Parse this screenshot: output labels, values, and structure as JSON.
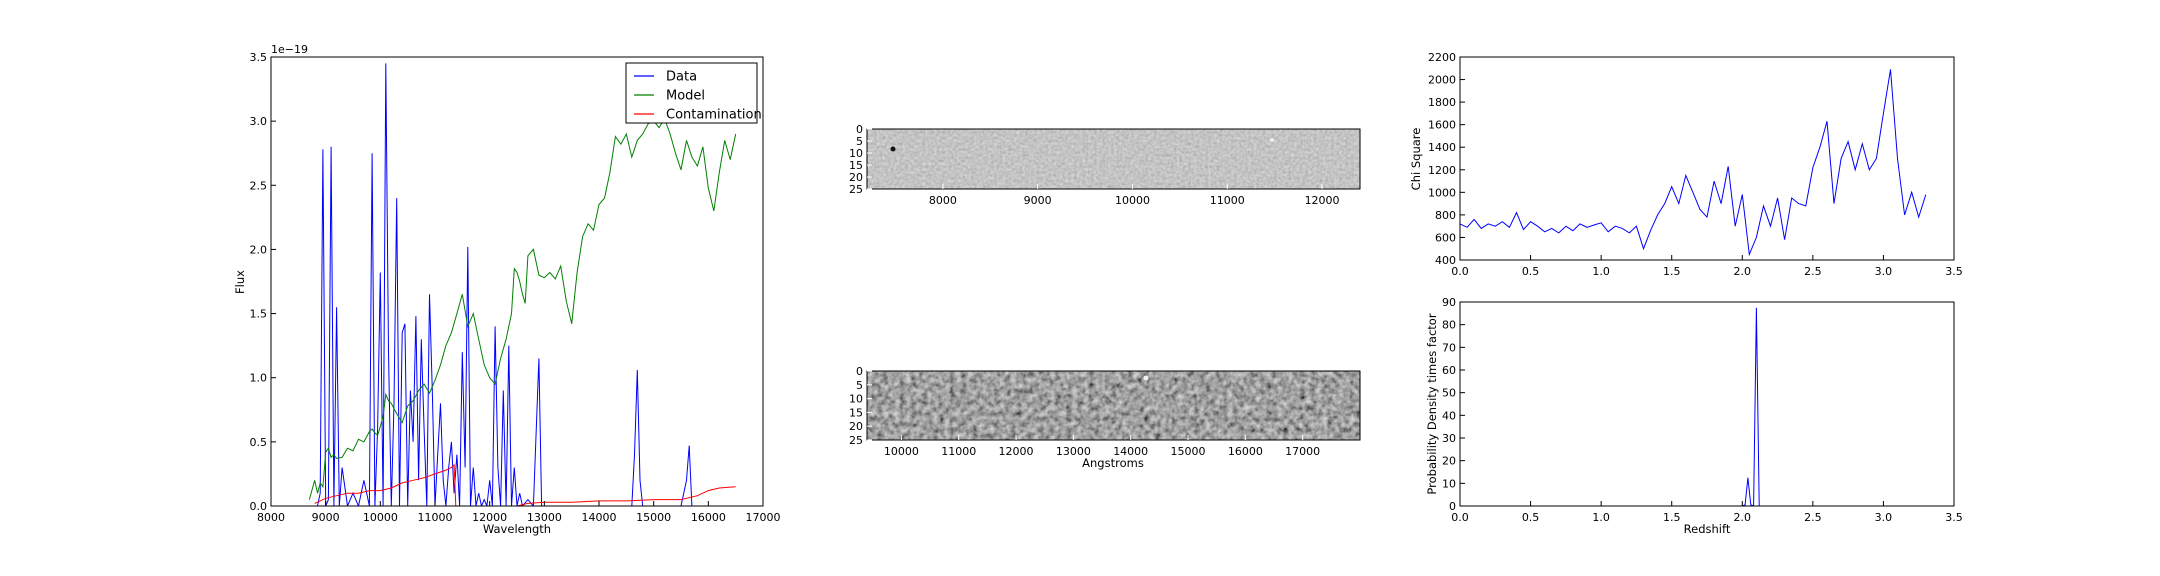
{
  "chart_data": [
    {
      "id": "spectrum",
      "type": "line",
      "xlabel": "Wavelength",
      "ylabel": "Flux",
      "offset_text": "1e−19",
      "xlim": [
        8000,
        17000
      ],
      "ylim": [
        0,
        3.5
      ],
      "xticks": [
        "8000",
        "9000",
        "10000",
        "11000",
        "12000",
        "13000",
        "14000",
        "15000",
        "16000",
        "17000"
      ],
      "yticks": [
        "0.0",
        "0.5",
        "1.0",
        "1.5",
        "2.0",
        "2.5",
        "3.0",
        "3.5"
      ],
      "legend": {
        "placement": "top-right",
        "entries": [
          "Data",
          "Model",
          "Contamination"
        ]
      },
      "series": [
        {
          "name": "Data",
          "color": "#0000ff",
          "x": [
            8850,
            8900,
            8950,
            9000,
            9050,
            9100,
            9150,
            9200,
            9250,
            9300,
            9400,
            9500,
            9600,
            9700,
            9800,
            9850,
            9900,
            9950,
            10000,
            10050,
            10100,
            10150,
            10200,
            10250,
            10300,
            10350,
            10400,
            10450,
            10500,
            10550,
            10600,
            10650,
            10700,
            10750,
            10800,
            10850,
            10900,
            10950,
            11000,
            11050,
            11100,
            11150,
            11200,
            11250,
            11300,
            11350,
            11400,
            11450,
            11500,
            11550,
            11600,
            11650,
            11700,
            11750,
            11800,
            11850,
            11900,
            11950,
            12000,
            12050,
            12100,
            12150,
            12200,
            12250,
            12300,
            12350,
            12400,
            12450,
            12500,
            12550,
            12600,
            12700,
            12800,
            12900,
            12950,
            13000,
            13050,
            13200,
            13500,
            13800,
            14000,
            14200,
            14500,
            14600,
            14650,
            14700,
            14750,
            14800,
            15000,
            15300,
            15500,
            15600,
            15650,
            15700,
            15750,
            15800,
            16000,
            16300,
            16500
          ],
          "y": [
            0,
            0.1,
            2.78,
            0,
            0.05,
            2.8,
            0,
            1.55,
            0,
            0.3,
            0,
            0.1,
            0,
            0.2,
            0,
            2.75,
            0,
            0.6,
            1.82,
            0,
            3.45,
            1.2,
            0,
            0.8,
            2.4,
            0,
            1.35,
            1.42,
            0,
            0.9,
            0.5,
            1.48,
            0.2,
            1.3,
            0.6,
            0,
            1.65,
            0.9,
            0,
            0.4,
            0.8,
            0.2,
            0,
            0.3,
            0.5,
            0.1,
            0.4,
            0,
            1.2,
            0.3,
            2.02,
            0,
            0.3,
            0,
            0.1,
            0,
            0.05,
            0,
            0.2,
            0,
            1.4,
            0.3,
            0,
            0.9,
            0,
            1.25,
            0,
            0.3,
            0,
            0.1,
            0,
            0.05,
            0,
            1.15,
            0,
            0,
            0,
            0,
            0,
            0,
            0,
            0,
            0,
            0,
            0.4,
            1.06,
            0.2,
            0,
            0,
            0,
            0,
            0.2,
            0.47,
            0,
            0,
            0,
            0,
            0,
            0
          ]
        },
        {
          "name": "Model",
          "color": "#008000",
          "x": [
            8700,
            8800,
            8850,
            8900,
            8950,
            9000,
            9050,
            9100,
            9150,
            9200,
            9300,
            9400,
            9500,
            9600,
            9700,
            9800,
            9850,
            9900,
            9950,
            10000,
            10050,
            10100,
            10150,
            10200,
            10300,
            10400,
            10500,
            10600,
            10700,
            10800,
            10900,
            11000,
            11100,
            11200,
            11300,
            11400,
            11500,
            11600,
            11700,
            11800,
            11900,
            12000,
            12100,
            12200,
            12300,
            12400,
            12450,
            12500,
            12550,
            12600,
            12650,
            12700,
            12800,
            12900,
            13000,
            13100,
            13200,
            13300,
            13400,
            13500,
            13600,
            13700,
            13800,
            13900,
            14000,
            14100,
            14200,
            14300,
            14400,
            14500,
            14600,
            14700,
            14800,
            14900,
            15000,
            15100,
            15200,
            15300,
            15400,
            15500,
            15600,
            15700,
            15800,
            15900,
            16000,
            16100,
            16200,
            16300,
            16400,
            16500
          ],
          "y": [
            0.05,
            0.2,
            0.1,
            0.18,
            0.15,
            0.42,
            0.45,
            0.38,
            0.4,
            0.37,
            0.38,
            0.45,
            0.43,
            0.52,
            0.5,
            0.58,
            0.6,
            0.57,
            0.55,
            0.62,
            0.7,
            0.87,
            0.82,
            0.8,
            0.72,
            0.65,
            0.78,
            0.82,
            0.9,
            0.95,
            0.88,
            0.98,
            1.1,
            1.25,
            1.35,
            1.5,
            1.65,
            1.4,
            1.5,
            1.3,
            1.1,
            1.0,
            0.95,
            1.15,
            1.3,
            1.5,
            1.85,
            1.82,
            1.75,
            1.65,
            1.58,
            1.95,
            2.0,
            1.8,
            1.78,
            1.82,
            1.77,
            1.87,
            1.6,
            1.42,
            1.82,
            2.1,
            2.2,
            2.15,
            2.35,
            2.4,
            2.6,
            2.88,
            2.82,
            2.9,
            2.72,
            2.85,
            2.9,
            2.98,
            3.0,
            2.95,
            3.02,
            2.9,
            2.75,
            2.62,
            2.85,
            2.72,
            2.65,
            2.8,
            2.48,
            2.3,
            2.6,
            2.85,
            2.7,
            2.9
          ]
        },
        {
          "name": "Contamination",
          "color": "#ff0000",
          "x": [
            8800,
            8900,
            9000,
            9200,
            9400,
            9600,
            9800,
            10000,
            10200,
            10400,
            10600,
            10800,
            11000,
            11200,
            11300,
            11350,
            11380,
            11400,
            11420,
            11500,
            12000,
            12500,
            12700,
            13000,
            13500,
            14000,
            14500,
            15000,
            15500,
            15800,
            16000,
            16200,
            16500
          ],
          "y": [
            0.02,
            0.04,
            0.06,
            0.08,
            0.1,
            0.1,
            0.12,
            0.12,
            0.14,
            0.18,
            0.2,
            0.22,
            0.25,
            0.28,
            0.3,
            0.32,
            0.0,
            0.0,
            0.0,
            0.0,
            0.0,
            0.0,
            0.02,
            0.03,
            0.03,
            0.04,
            0.04,
            0.05,
            0.05,
            0.08,
            0.12,
            0.14,
            0.15
          ]
        }
      ]
    },
    {
      "id": "spectrum-2d-top",
      "type": "heatmap",
      "xlim": [
        7200,
        12400
      ],
      "ylim": [
        0,
        25
      ],
      "xticks": [
        "8000",
        "9000",
        "10000",
        "11000",
        "12000"
      ],
      "yticks": [
        "0",
        "5",
        "10",
        "15",
        "20",
        "25"
      ],
      "colormap": "gray"
    },
    {
      "id": "spectrum-2d-bottom",
      "type": "heatmap",
      "xlabel": "Angstroms",
      "xlim": [
        9400,
        18000
      ],
      "ylim": [
        0,
        25
      ],
      "xticks": [
        "10000",
        "11000",
        "12000",
        "13000",
        "14000",
        "15000",
        "16000",
        "17000"
      ],
      "yticks": [
        "0",
        "5",
        "10",
        "15",
        "20",
        "25"
      ],
      "colormap": "gray"
    },
    {
      "id": "chisquare",
      "type": "line",
      "ylabel": "Chi Square",
      "xlim": [
        0,
        3.5
      ],
      "ylim": [
        400,
        2200
      ],
      "xticks": [
        "0.0",
        "0.5",
        "1.0",
        "1.5",
        "2.0",
        "2.5",
        "3.0",
        "3.5"
      ],
      "yticks": [
        "400",
        "600",
        "800",
        "1000",
        "1200",
        "1400",
        "1600",
        "1800",
        "2000",
        "2200"
      ],
      "series": [
        {
          "color": "#0000ff",
          "x": [
            0.0,
            0.05,
            0.1,
            0.15,
            0.2,
            0.25,
            0.3,
            0.35,
            0.4,
            0.45,
            0.5,
            0.55,
            0.6,
            0.65,
            0.7,
            0.75,
            0.8,
            0.85,
            0.9,
            0.95,
            1.0,
            1.05,
            1.1,
            1.15,
            1.2,
            1.25,
            1.3,
            1.35,
            1.4,
            1.45,
            1.5,
            1.55,
            1.6,
            1.65,
            1.7,
            1.75,
            1.8,
            1.85,
            1.9,
            1.95,
            2.0,
            2.05,
            2.1,
            2.15,
            2.2,
            2.25,
            2.3,
            2.35,
            2.4,
            2.45,
            2.5,
            2.55,
            2.6,
            2.65,
            2.7,
            2.75,
            2.8,
            2.85,
            2.9,
            2.95,
            3.0,
            3.05,
            3.1,
            3.15,
            3.2,
            3.25,
            3.3
          ],
          "y": [
            720,
            690,
            760,
            680,
            720,
            700,
            740,
            690,
            820,
            670,
            740,
            700,
            650,
            680,
            640,
            700,
            660,
            720,
            690,
            710,
            730,
            650,
            700,
            680,
            640,
            700,
            500,
            660,
            800,
            900,
            1050,
            900,
            1150,
            1000,
            850,
            780,
            1100,
            900,
            1230,
            700,
            980,
            450,
            600,
            880,
            700,
            950,
            580,
            950,
            900,
            880,
            1220,
            1400,
            1630,
            900,
            1300,
            1450,
            1200,
            1430,
            1200,
            1300,
            1700,
            2090,
            1300,
            800,
            1000,
            780,
            980
          ]
        }
      ]
    },
    {
      "id": "probability",
      "type": "line",
      "xlabel": "Redshift",
      "ylabel": "Probability Density times factor",
      "xlim": [
        0,
        3.5
      ],
      "ylim": [
        0,
        90
      ],
      "xticks": [
        "0.0",
        "0.5",
        "1.0",
        "1.5",
        "2.0",
        "2.5",
        "3.0",
        "3.5"
      ],
      "yticks": [
        "0",
        "10",
        "20",
        "30",
        "40",
        "50",
        "60",
        "70",
        "80",
        "90"
      ],
      "series": [
        {
          "color": "#0000ff",
          "x": [
            0.0,
            2.0,
            2.02,
            2.04,
            2.06,
            2.08,
            2.1,
            2.12,
            2.14,
            3.3
          ],
          "y": [
            0,
            0,
            0.5,
            12.5,
            0.5,
            0,
            87.5,
            0,
            0,
            0
          ]
        }
      ]
    }
  ]
}
